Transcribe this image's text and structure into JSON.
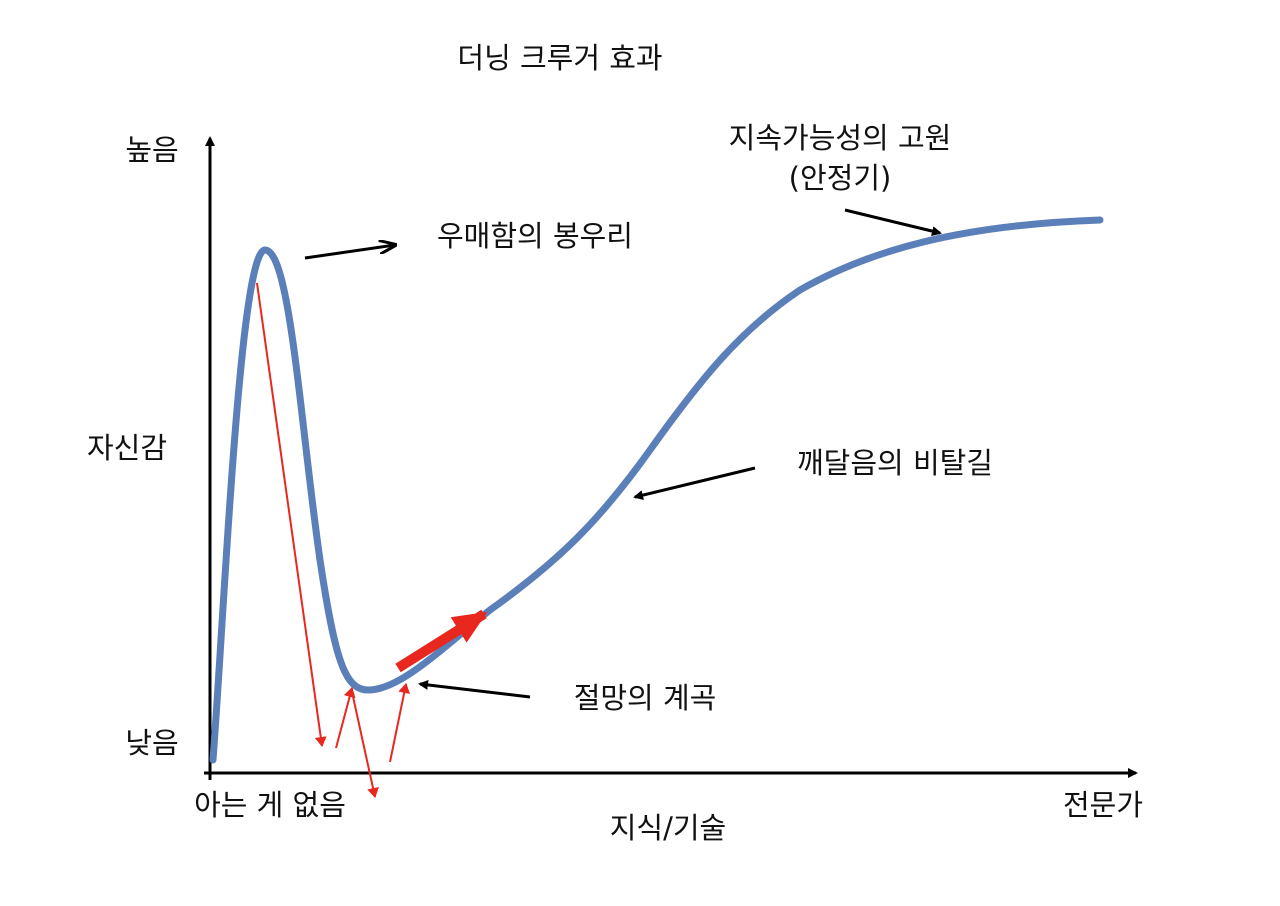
{
  "title": "더닝 크루거 효과",
  "y_axis": {
    "label": "자신감",
    "high": "높음",
    "low": "낮음"
  },
  "x_axis": {
    "label": "지식/기술",
    "start": "아는 게 없음",
    "end": "전문가"
  },
  "annotations": {
    "peak": "우매함의 봉우리",
    "valley": "절망의 계곡",
    "slope": "깨달음의 비탈길",
    "plateau": [
      "지속가능성의 고원",
      "(안정기)"
    ]
  }
}
